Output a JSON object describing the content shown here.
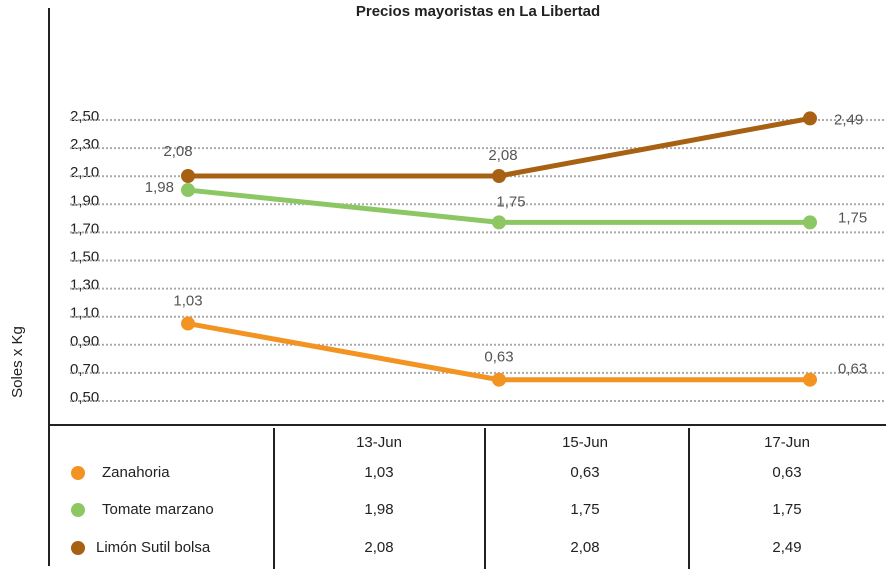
{
  "chart_data": {
    "type": "line",
    "title": "Precios mayoristas en La Libertad",
    "y_label": "Soles x Kg",
    "categories": [
      "13-Jun",
      "15-Jun",
      "17-Jun"
    ],
    "series": [
      {
        "name": "Zanahoria",
        "color": "#f39322",
        "values": [
          1.03,
          0.63,
          0.63
        ],
        "value_labels": [
          "1,03",
          "0,63",
          "0,63"
        ]
      },
      {
        "name": "Tomate marzano",
        "color": "#8dc764",
        "values": [
          1.98,
          1.75,
          1.75
        ],
        "value_labels": [
          "1,98",
          "1,75",
          "1,75"
        ]
      },
      {
        "name": "Limón Sutil bolsa",
        "color": "#a86012",
        "values": [
          2.08,
          2.08,
          2.49
        ],
        "value_labels": [
          "2,08",
          "2,08",
          "2,49"
        ]
      }
    ],
    "ylim": [
      0.5,
      2.5
    ],
    "yticks": [
      {
        "value": 0.5,
        "label": "0,50"
      },
      {
        "value": 0.7,
        "label": "0,70"
      },
      {
        "value": 0.9,
        "label": "0,90"
      },
      {
        "value": 1.1,
        "label": "1,10"
      },
      {
        "value": 1.3,
        "label": "1,30"
      },
      {
        "value": 1.5,
        "label": "1,50"
      },
      {
        "value": 1.7,
        "label": "1,70"
      },
      {
        "value": 1.9,
        "label": "1,90"
      },
      {
        "value": 2.1,
        "label": "2,10"
      },
      {
        "value": 2.3,
        "label": "2,30"
      },
      {
        "value": 2.5,
        "label": "2,50"
      }
    ],
    "grid": true
  }
}
